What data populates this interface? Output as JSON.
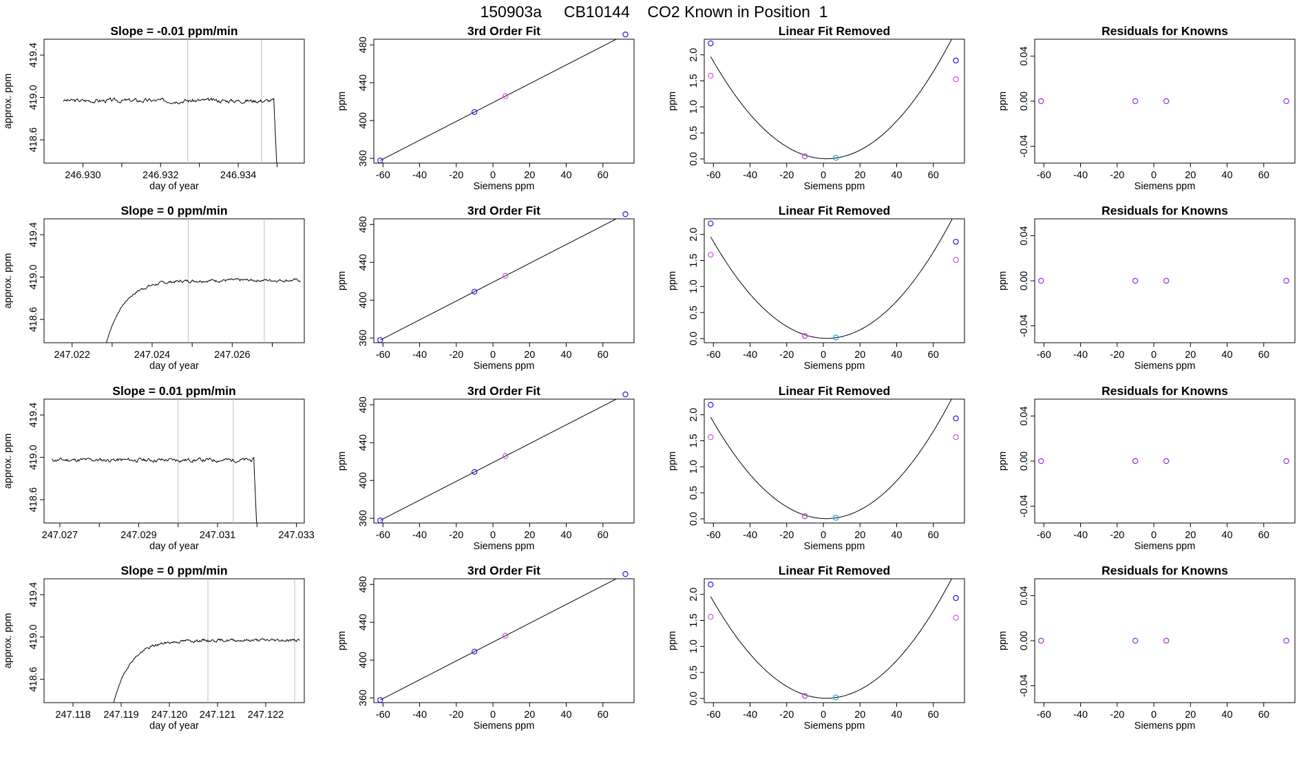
{
  "page": {
    "suptitle": "150903a     CB10144    CO2 Known in Position  1"
  },
  "colors": {
    "line": "#000000",
    "vline": "#bebebe",
    "blue": "#1a1adb",
    "magenta": "#d34fe0",
    "cyan": "#1f9fd6",
    "purple": "#9a2ee0",
    "red": "#ff0000"
  },
  "chart_data": [
    {
      "id": "r1-timeseries",
      "type": "line",
      "title": "Slope =  -0.01  ppm/min",
      "xlabel": "day of year",
      "ylabel": "approx. ppm",
      "xlim": [
        246.929,
        246.9357
      ],
      "ylim": [
        418.38,
        419.55
      ],
      "xticks": [
        246.93,
        246.932,
        246.934
      ],
      "xticklabels": [
        "246.930",
        "246.932",
        "246.934"
      ],
      "xminor": [
        246.931,
        246.933,
        246.935
      ],
      "yticks": [
        418.6,
        419.0,
        419.4
      ],
      "yticklabels": [
        "418.6",
        "419.0",
        "419.4"
      ],
      "vlines": [
        246.9327,
        246.9346
      ],
      "series": {
        "mode": "flat",
        "x0": 246.9295,
        "x1": 246.935,
        "level": 418.97,
        "noise": 0.014,
        "drop_to": 418.3,
        "seed": 3
      }
    },
    {
      "id": "r1-fit",
      "type": "scatter-line",
      "title": "3rd Order Fit",
      "xlabel": "Siemens ppm",
      "ylabel": "ppm",
      "xlim": [
        -65,
        77
      ],
      "ylim": [
        355,
        486
      ],
      "xticks": [
        -60,
        -40,
        -20,
        0,
        20,
        40,
        60
      ],
      "xticklabels": [
        "-60",
        "-40",
        "-20",
        "0",
        "20",
        "40",
        "60"
      ],
      "yticks": [
        360,
        400,
        440,
        480
      ],
      "yticklabels": [
        "360",
        "400",
        "440",
        "480"
      ],
      "points": [
        {
          "x": -61.5,
          "y": 357.8,
          "c": "blue"
        },
        {
          "x": -10.1,
          "y": 409.0,
          "c": "blue"
        },
        {
          "x": 6.8,
          "y": 425.8,
          "c": "magenta"
        },
        {
          "x": 72.3,
          "y": 491.0,
          "c": "blue"
        }
      ]
    },
    {
      "id": "r1-linfit",
      "type": "scatter-curve",
      "title": "Linear Fit Removed",
      "xlabel": "Siemens ppm",
      "ylabel": "ppm",
      "xlim": [
        -65,
        77
      ],
      "ylim": [
        -0.08,
        2.3
      ],
      "xticks": [
        -60,
        -40,
        -20,
        0,
        20,
        40,
        60
      ],
      "xticklabels": [
        "-60",
        "-40",
        "-20",
        "0",
        "20",
        "40",
        "60"
      ],
      "yticks": [
        0.0,
        0.5,
        1.0,
        1.5,
        2.0
      ],
      "yticklabels": [
        "0.0",
        "0.5",
        "1.0",
        "1.5",
        "2.0"
      ],
      "curve": {
        "a": 0.000492,
        "b": -0.00164,
        "c": 0.005
      },
      "points": [
        {
          "x": -61.5,
          "y": 2.22,
          "c": "blue"
        },
        {
          "x": -61.5,
          "y": 1.6,
          "c": "magenta"
        },
        {
          "x": -10.1,
          "y": 0.05,
          "c": "blue"
        },
        {
          "x": -10.1,
          "y": 0.05,
          "c": "magenta"
        },
        {
          "x": 6.8,
          "y": 0.02,
          "c": "cyan"
        },
        {
          "x": 72.3,
          "y": 1.89,
          "c": "blue"
        },
        {
          "x": 72.3,
          "y": 1.53,
          "c": "magenta"
        }
      ]
    },
    {
      "id": "r1-resid",
      "type": "scatter",
      "title": "Residuals for Knowns",
      "xlabel": "Siemens ppm",
      "ylabel": "ppm",
      "xlim": [
        -65,
        77
      ],
      "ylim": [
        -0.055,
        0.055
      ],
      "xticks": [
        -60,
        -40,
        -20,
        0,
        20,
        40,
        60
      ],
      "xticklabels": [
        "-60",
        "-40",
        "-20",
        "0",
        "20",
        "40",
        "60"
      ],
      "yticks": [
        -0.04,
        0.0,
        0.04
      ],
      "yticklabels": [
        "-0.04",
        "0.00",
        "0.04"
      ],
      "points": [
        {
          "x": -61.5,
          "y": 0,
          "c": "purple"
        },
        {
          "x": -10.1,
          "y": 0,
          "c": "purple"
        },
        {
          "x": 6.8,
          "y": 0,
          "c": "purple"
        },
        {
          "x": 72.3,
          "y": 0,
          "c": "purple"
        }
      ]
    },
    {
      "id": "r2-timeseries",
      "type": "line",
      "title": "Slope =  0  ppm/min",
      "xlabel": "day of year",
      "ylabel": "approx. ppm",
      "xlim": [
        247.0213,
        247.0278
      ],
      "ylim": [
        418.38,
        419.55
      ],
      "xticks": [
        247.022,
        247.024,
        247.026
      ],
      "xticklabels": [
        "247.022",
        "247.024",
        "247.026"
      ],
      "xminor": [
        247.023,
        247.025,
        247.027
      ],
      "yticks": [
        418.6,
        419.0,
        419.4
      ],
      "yticklabels": [
        "418.6",
        "419.0",
        "419.4"
      ],
      "vlines": [
        247.0249,
        247.0268
      ],
      "series": {
        "mode": "rise",
        "x0": 247.0228,
        "x1": 247.0277,
        "level": 418.97,
        "start": 418.3,
        "tau": 0.00045,
        "noise": 0.01,
        "seed": 7
      }
    },
    {
      "id": "r2-fit",
      "type": "scatter-line",
      "title": "3rd Order Fit",
      "xlabel": "Siemens ppm",
      "ylabel": "ppm",
      "xlim": [
        -65,
        77
      ],
      "ylim": [
        355,
        486
      ],
      "xticks": [
        -60,
        -40,
        -20,
        0,
        20,
        40,
        60
      ],
      "xticklabels": [
        "-60",
        "-40",
        "-20",
        "0",
        "20",
        "40",
        "60"
      ],
      "yticks": [
        360,
        400,
        440,
        480
      ],
      "yticklabels": [
        "360",
        "400",
        "440",
        "480"
      ],
      "points": [
        {
          "x": -61.5,
          "y": 357.8,
          "c": "blue"
        },
        {
          "x": -10.1,
          "y": 409.0,
          "c": "blue"
        },
        {
          "x": 6.8,
          "y": 425.8,
          "c": "magenta"
        },
        {
          "x": 72.3,
          "y": 491.0,
          "c": "blue"
        }
      ]
    },
    {
      "id": "r2-linfit",
      "type": "scatter-curve",
      "title": "Linear Fit Removed",
      "xlabel": "Siemens ppm",
      "ylabel": "ppm",
      "xlim": [
        -65,
        77
      ],
      "ylim": [
        -0.08,
        2.3
      ],
      "xticks": [
        -60,
        -40,
        -20,
        0,
        20,
        40,
        60
      ],
      "xticklabels": [
        "-60",
        "-40",
        "-20",
        "0",
        "20",
        "40",
        "60"
      ],
      "yticks": [
        0.0,
        0.5,
        1.0,
        1.5,
        2.0
      ],
      "yticklabels": [
        "0.0",
        "0.5",
        "1.0",
        "1.5",
        "2.0"
      ],
      "curve": {
        "a": 0.000488,
        "b": -0.00168,
        "c": 0.005
      },
      "points": [
        {
          "x": -61.5,
          "y": 2.21,
          "c": "blue"
        },
        {
          "x": -61.5,
          "y": 1.61,
          "c": "magenta"
        },
        {
          "x": -10.1,
          "y": 0.05,
          "c": "blue"
        },
        {
          "x": -10.1,
          "y": 0.05,
          "c": "magenta"
        },
        {
          "x": 6.8,
          "y": 0.02,
          "c": "cyan"
        },
        {
          "x": 72.3,
          "y": 1.86,
          "c": "blue"
        },
        {
          "x": 72.3,
          "y": 1.51,
          "c": "magenta"
        }
      ]
    },
    {
      "id": "r2-resid",
      "type": "scatter",
      "title": "Residuals for Knowns",
      "xlabel": "Siemens ppm",
      "ylabel": "ppm",
      "xlim": [
        -65,
        77
      ],
      "ylim": [
        -0.055,
        0.055
      ],
      "xticks": [
        -60,
        -40,
        -20,
        0,
        20,
        40,
        60
      ],
      "xticklabels": [
        "-60",
        "-40",
        "-20",
        "0",
        "20",
        "40",
        "60"
      ],
      "yticks": [
        -0.04,
        0.0,
        0.04
      ],
      "yticklabels": [
        "-0.04",
        "0.00",
        "0.04"
      ],
      "points": [
        {
          "x": -61.5,
          "y": 0,
          "c": "purple"
        },
        {
          "x": -10.1,
          "y": 0,
          "c": "purple"
        },
        {
          "x": 6.8,
          "y": 0,
          "c": "purple"
        },
        {
          "x": 72.3,
          "y": 0,
          "c": "purple"
        }
      ]
    },
    {
      "id": "r3-timeseries",
      "type": "line",
      "title": "Slope =  0.01  ppm/min",
      "xlabel": "day of year",
      "ylabel": "approx. ppm",
      "xlim": [
        247.0266,
        247.0332
      ],
      "ylim": [
        418.38,
        419.55
      ],
      "xticks": [
        247.027,
        247.029,
        247.031,
        247.033
      ],
      "xticklabels": [
        "247.027",
        "247.029",
        "247.031",
        "247.033"
      ],
      "xminor": [
        247.028,
        247.03,
        247.032
      ],
      "yticks": [
        418.6,
        419.0,
        419.4
      ],
      "yticklabels": [
        "418.6",
        "419.0",
        "419.4"
      ],
      "vlines": [
        247.03,
        247.0314
      ],
      "series": {
        "mode": "flat",
        "x0": 247.0268,
        "x1": 247.032,
        "level": 418.975,
        "noise": 0.013,
        "drop_to": 418.3,
        "seed": 11
      }
    },
    {
      "id": "r3-fit",
      "type": "scatter-line",
      "title": "3rd Order Fit",
      "xlabel": "Siemens ppm",
      "ylabel": "ppm",
      "xlim": [
        -65,
        77
      ],
      "ylim": [
        355,
        486
      ],
      "xticks": [
        -60,
        -40,
        -20,
        0,
        20,
        40,
        60
      ],
      "xticklabels": [
        "-60",
        "-40",
        "-20",
        "0",
        "20",
        "40",
        "60"
      ],
      "yticks": [
        360,
        400,
        440,
        480
      ],
      "yticklabels": [
        "360",
        "400",
        "440",
        "480"
      ],
      "points": [
        {
          "x": -61.5,
          "y": 357.8,
          "c": "blue"
        },
        {
          "x": -10.1,
          "y": 409.0,
          "c": "blue"
        },
        {
          "x": 6.8,
          "y": 425.8,
          "c": "magenta"
        },
        {
          "x": 72.3,
          "y": 491.0,
          "c": "blue"
        }
      ]
    },
    {
      "id": "r3-linfit",
      "type": "scatter-curve",
      "title": "Linear Fit Removed",
      "xlabel": "Siemens ppm",
      "ylabel": "ppm",
      "xlim": [
        -65,
        77
      ],
      "ylim": [
        -0.08,
        2.3
      ],
      "xticks": [
        -60,
        -40,
        -20,
        0,
        20,
        40,
        60
      ],
      "xticklabels": [
        "-60",
        "-40",
        "-20",
        "0",
        "20",
        "40",
        "60"
      ],
      "yticks": [
        0.0,
        0.5,
        1.0,
        1.5,
        2.0
      ],
      "yticklabels": [
        "0.0",
        "0.5",
        "1.0",
        "1.5",
        "2.0"
      ],
      "curve": {
        "a": 0.000491,
        "b": -0.0015,
        "c": 0.005
      },
      "points": [
        {
          "x": -61.5,
          "y": 2.19,
          "c": "blue"
        },
        {
          "x": -61.5,
          "y": 1.57,
          "c": "magenta"
        },
        {
          "x": -10.1,
          "y": 0.05,
          "c": "blue"
        },
        {
          "x": -10.1,
          "y": 0.05,
          "c": "magenta"
        },
        {
          "x": 6.8,
          "y": 0.02,
          "c": "cyan"
        },
        {
          "x": 72.3,
          "y": 1.93,
          "c": "blue"
        },
        {
          "x": 72.3,
          "y": 1.57,
          "c": "magenta"
        }
      ]
    },
    {
      "id": "r3-resid",
      "type": "scatter",
      "title": "Residuals for Knowns",
      "xlabel": "Siemens ppm",
      "ylabel": "ppm",
      "xlim": [
        -65,
        77
      ],
      "ylim": [
        -0.055,
        0.055
      ],
      "xticks": [
        -60,
        -40,
        -20,
        0,
        20,
        40,
        60
      ],
      "xticklabels": [
        "-60",
        "-40",
        "-20",
        "0",
        "20",
        "40",
        "60"
      ],
      "yticks": [
        -0.04,
        0.0,
        0.04
      ],
      "yticklabels": [
        "-0.04",
        "0.00",
        "0.04"
      ],
      "points": [
        {
          "x": -61.5,
          "y": 0,
          "c": "purple"
        },
        {
          "x": -10.1,
          "y": 0,
          "c": "purple"
        },
        {
          "x": 6.8,
          "y": 0,
          "c": "purple"
        },
        {
          "x": 72.3,
          "y": 0,
          "c": "purple"
        }
      ]
    },
    {
      "id": "r4-timeseries",
      "type": "line",
      "title": "Slope =  0  ppm/min",
      "xlabel": "day of year",
      "ylabel": "approx. ppm",
      "xlim": [
        247.1174,
        247.1228
      ],
      "ylim": [
        418.38,
        419.55
      ],
      "xticks": [
        247.118,
        247.119,
        247.12,
        247.121,
        247.122
      ],
      "xticklabels": [
        "247.118",
        "247.119",
        "247.120",
        "247.121",
        "247.122"
      ],
      "xminor": [],
      "yticks": [
        418.6,
        419.0,
        419.4
      ],
      "yticklabels": [
        "418.6",
        "419.0",
        "419.4"
      ],
      "vlines": [
        247.1208,
        247.1226
      ],
      "series": {
        "mode": "rise",
        "x0": 247.1188,
        "x1": 247.1227,
        "level": 418.97,
        "start": 418.3,
        "tau": 0.00035,
        "noise": 0.01,
        "seed": 19
      }
    },
    {
      "id": "r4-fit",
      "type": "scatter-line",
      "title": "3rd Order Fit",
      "xlabel": "Siemens ppm",
      "ylabel": "ppm",
      "xlim": [
        -65,
        77
      ],
      "ylim": [
        355,
        486
      ],
      "xticks": [
        -60,
        -40,
        -20,
        0,
        20,
        40,
        60
      ],
      "xticklabels": [
        "-60",
        "-40",
        "-20",
        "0",
        "20",
        "40",
        "60"
      ],
      "yticks": [
        360,
        400,
        440,
        480
      ],
      "yticklabels": [
        "360",
        "400",
        "440",
        "480"
      ],
      "points": [
        {
          "x": -61.5,
          "y": 357.8,
          "c": "blue"
        },
        {
          "x": -10.1,
          "y": 409.0,
          "c": "blue"
        },
        {
          "x": 6.8,
          "y": 425.8,
          "c": "magenta"
        },
        {
          "x": 72.3,
          "y": 491.0,
          "c": "blue"
        }
      ]
    },
    {
      "id": "r4-linfit",
      "type": "scatter-curve",
      "title": "Linear Fit Removed",
      "xlabel": "Siemens ppm",
      "ylabel": "ppm",
      "xlim": [
        -65,
        77
      ],
      "ylim": [
        -0.08,
        2.3
      ],
      "xticks": [
        -60,
        -40,
        -20,
        0,
        20,
        40,
        60
      ],
      "xticklabels": [
        "-60",
        "-40",
        "-20",
        "0",
        "20",
        "40",
        "60"
      ],
      "yticks": [
        0.0,
        0.5,
        1.0,
        1.5,
        2.0
      ],
      "yticklabels": [
        "0.0",
        "0.5",
        "1.0",
        "1.5",
        "2.0"
      ],
      "curve": {
        "a": 0.000491,
        "b": -0.00155,
        "c": 0.005
      },
      "points": [
        {
          "x": -61.5,
          "y": 2.19,
          "c": "blue"
        },
        {
          "x": -61.5,
          "y": 1.57,
          "c": "magenta"
        },
        {
          "x": -10.1,
          "y": 0.05,
          "c": "blue"
        },
        {
          "x": -10.1,
          "y": 0.05,
          "c": "magenta"
        },
        {
          "x": 6.8,
          "y": 0.02,
          "c": "cyan"
        },
        {
          "x": 72.3,
          "y": 1.93,
          "c": "blue"
        },
        {
          "x": 72.3,
          "y": 1.55,
          "c": "magenta"
        }
      ]
    },
    {
      "id": "r4-resid",
      "type": "scatter",
      "title": "Residuals for Knowns",
      "xlabel": "Siemens ppm",
      "ylabel": "ppm",
      "xlim": [
        -65,
        77
      ],
      "ylim": [
        -0.055,
        0.055
      ],
      "xticks": [
        -60,
        -40,
        -20,
        0,
        20,
        40,
        60
      ],
      "xticklabels": [
        "-60",
        "-40",
        "-20",
        "0",
        "20",
        "40",
        "60"
      ],
      "yticks": [
        -0.04,
        0.0,
        0.04
      ],
      "yticklabels": [
        "-0.04",
        "0.00",
        "0.04"
      ],
      "points": [
        {
          "x": -61.5,
          "y": 0,
          "c": "purple"
        },
        {
          "x": -10.1,
          "y": 0,
          "c": "purple"
        },
        {
          "x": 6.8,
          "y": 0,
          "c": "purple"
        },
        {
          "x": 72.3,
          "y": 0,
          "c": "purple"
        }
      ]
    }
  ]
}
